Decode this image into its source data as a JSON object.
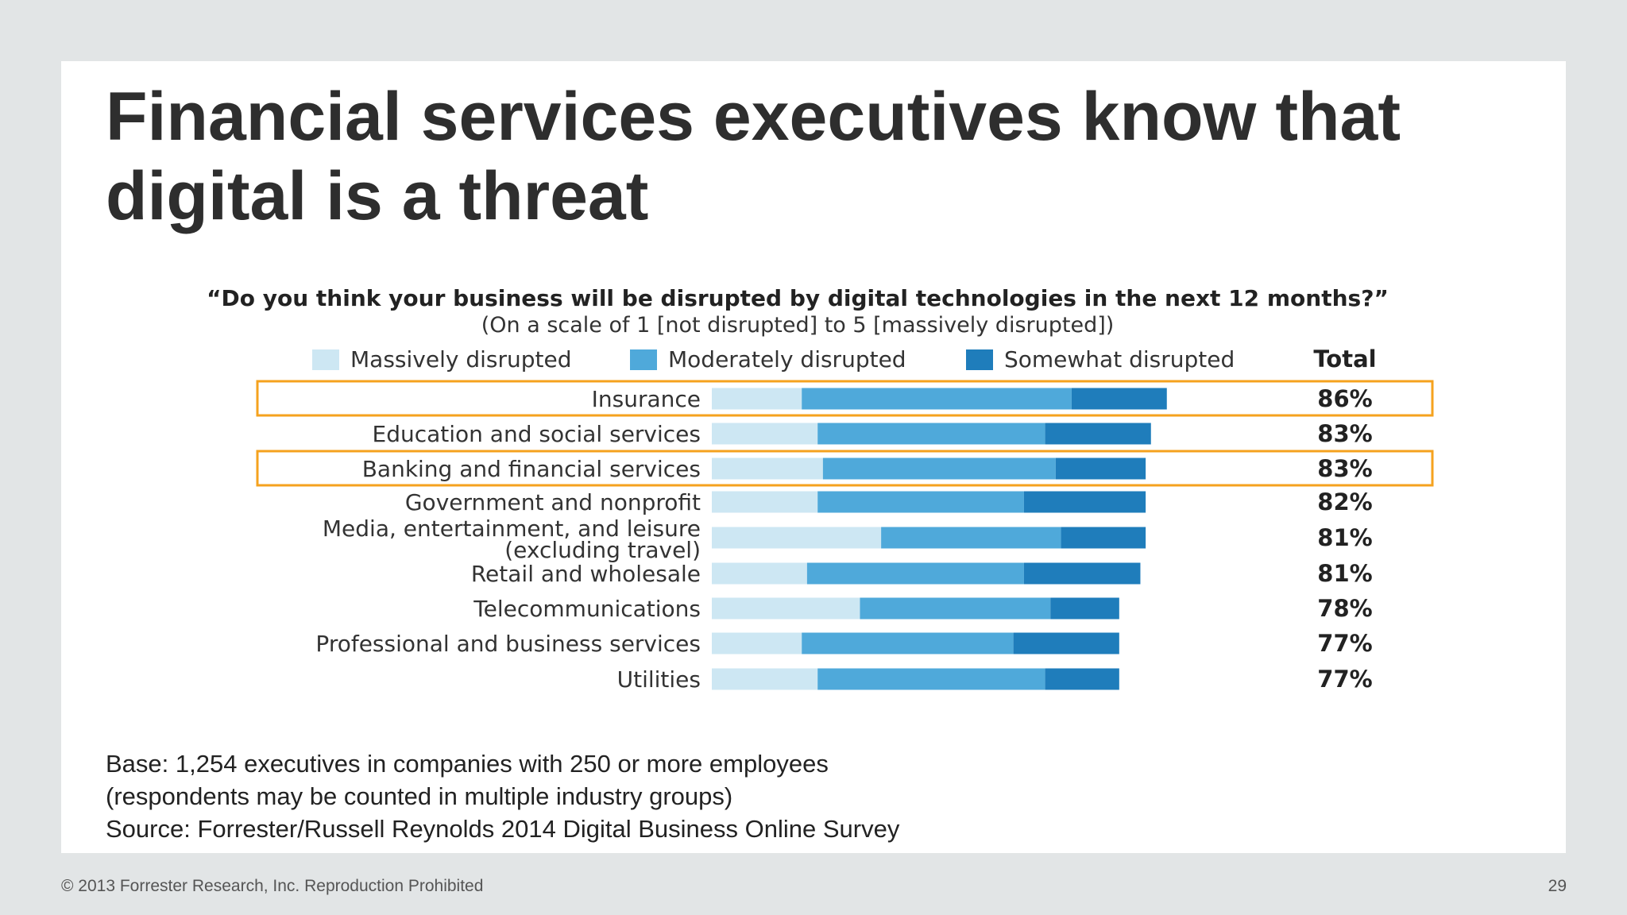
{
  "slide": {
    "title": "Financial services executives know that digital is a threat",
    "footnote": [
      "Base: 1,254 executives in companies with 250 or more employees",
      "(respondents may be counted in multiple industry groups)",
      "Source: Forrester/Russell Reynolds 2014 Digital Business Online Survey"
    ],
    "copyright": "© 2013 Forrester Research, Inc. Reproduction Prohibited",
    "page_number": "29"
  },
  "colors": {
    "massively": "#cde7f3",
    "moderately": "#4fa9da",
    "somewhat": "#1f7dbb",
    "highlight_box": "#f5a21e",
    "title_text": "#2e2e2e"
  },
  "chart_data": {
    "type": "bar",
    "orientation": "horizontal",
    "stacked": true,
    "title": "“Do you think your business will be disrupted by digital technologies in the next 12 months?”",
    "subtitle": "(On a scale of 1 [not disrupted] to 5 [massively disrupted])",
    "total_header": "Total",
    "legend_position": "top",
    "x_range": [
      0,
      100
    ],
    "grid": false,
    "categories": [
      [
        "Insurance"
      ],
      [
        "Education and social services"
      ],
      [
        "Banking and financial services"
      ],
      [
        "Government and nonprofit"
      ],
      [
        "Media, entertainment, and leisure",
        "(excluding travel)"
      ],
      [
        "Retail and wholesale"
      ],
      [
        "Telecommunications"
      ],
      [
        "Professional and business services"
      ],
      [
        "Utilities"
      ]
    ],
    "series": [
      {
        "name": "Massively disrupted",
        "color": "#cde7f3",
        "values": [
          17,
          20,
          21,
          20,
          32,
          18,
          28,
          17,
          20
        ]
      },
      {
        "name": "Moderately disrupted",
        "color": "#4fa9da",
        "values": [
          51,
          43,
          44,
          39,
          34,
          41,
          36,
          40,
          43
        ]
      },
      {
        "name": "Somewhat disrupted",
        "color": "#1f7dbb",
        "values": [
          18,
          20,
          17,
          23,
          16,
          22,
          13,
          20,
          14
        ]
      }
    ],
    "totals": [
      "86%",
      "83%",
      "83%",
      "82%",
      "81%",
      "81%",
      "78%",
      "77%",
      "77%"
    ],
    "highlighted": [
      "Insurance",
      "Banking and financial services"
    ]
  }
}
